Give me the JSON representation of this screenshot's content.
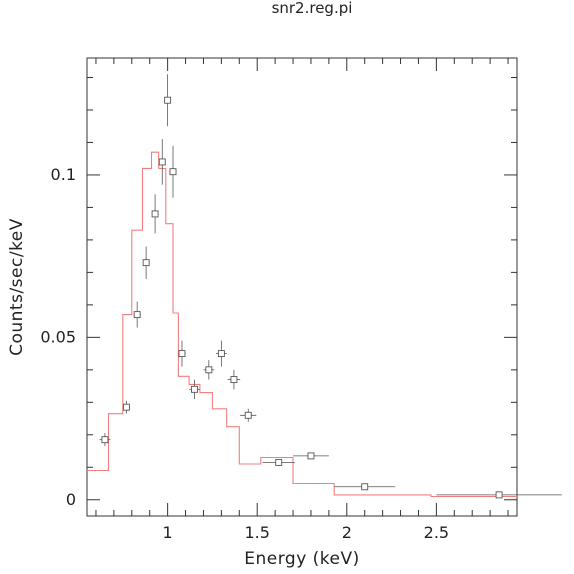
{
  "chart_data": {
    "type": "scatter",
    "title": "snr2.reg.pi",
    "xlabel": "Energy (keV)",
    "ylabel": "Counts/sec/keV",
    "xlim": [
      0.55,
      2.95
    ],
    "ylim": [
      -0.005,
      0.136
    ],
    "xticks": [
      1,
      1.5,
      2,
      2.5
    ],
    "xtick_labels": [
      "1",
      "1.5",
      "2",
      "2.5"
    ],
    "yticks": [
      0,
      0.05,
      0.1
    ],
    "ytick_labels": [
      "0",
      "0.05",
      "0.1"
    ],
    "grid": false,
    "legend": "none",
    "colors": {
      "data": "#555555",
      "model": "#f08080",
      "frame": "#333333"
    },
    "series": [
      {
        "type": "scatter-errorbar",
        "x": [
          0.65,
          0.77,
          0.83,
          0.88,
          0.93,
          0.97,
          1.0,
          1.03,
          1.08,
          1.15,
          1.23,
          1.3,
          1.37,
          1.45,
          1.62,
          1.8,
          2.1,
          2.85
        ],
        "y": [
          0.0185,
          0.0285,
          0.057,
          0.073,
          0.088,
          0.104,
          0.123,
          0.101,
          0.045,
          0.034,
          0.04,
          0.045,
          0.037,
          0.026,
          0.0115,
          0.0135,
          0.004,
          0.0015
        ],
        "xerr": [
          0.03,
          0.02,
          0.02,
          0.015,
          0.015,
          0.015,
          0.015,
          0.02,
          0.02,
          0.03,
          0.03,
          0.03,
          0.035,
          0.045,
          0.09,
          0.1,
          0.17,
          0.35
        ],
        "yerr": [
          0.002,
          0.002,
          0.004,
          0.005,
          0.006,
          0.007,
          0.008,
          0.008,
          0.004,
          0.003,
          0.003,
          0.004,
          0.003,
          0.002,
          0.001,
          0.001,
          0.0005,
          0.0004
        ]
      },
      {
        "type": "step",
        "edges": [
          0.55,
          0.67,
          0.75,
          0.8,
          0.86,
          0.91,
          0.95,
          0.99,
          1.03,
          1.06,
          1.12,
          1.18,
          1.25,
          1.33,
          1.4,
          1.52,
          1.7,
          1.93,
          2.47,
          2.95
        ],
        "values": [
          0.009,
          0.0265,
          0.057,
          0.083,
          0.102,
          0.107,
          0.102,
          0.085,
          0.0575,
          0.038,
          0.0355,
          0.033,
          0.028,
          0.0225,
          0.011,
          0.013,
          0.005,
          0.0015,
          0.001
        ]
      }
    ]
  }
}
